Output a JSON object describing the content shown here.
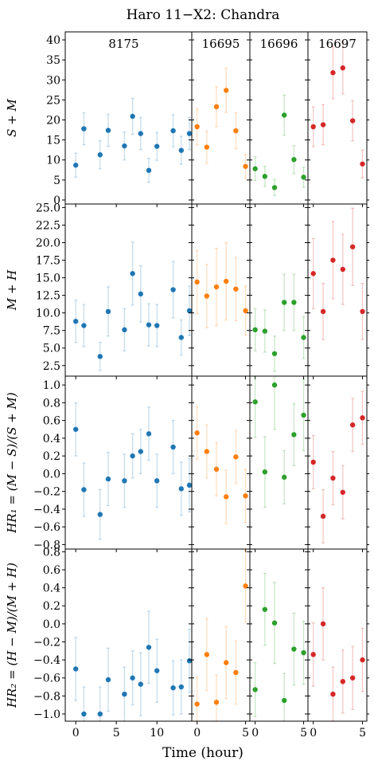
{
  "chart_data": {
    "type": "scatter",
    "title": "Haro 11−X2: Chandra",
    "xlabel": "Time (hour)",
    "colors": [
      "#1f77b4",
      "#ff7f0e",
      "#2ca02c",
      "#d62728"
    ],
    "obsids": [
      {
        "label": "8175",
        "xlim": [
          -1,
          14
        ],
        "ticks": [
          0,
          5,
          10
        ]
      },
      {
        "label": "16695",
        "xlim": [
          -0.3,
          5.2
        ],
        "ticks": [
          0,
          5
        ]
      },
      {
        "label": "16696",
        "xlim": [
          -0.3,
          5.2
        ],
        "ticks": [
          0,
          5
        ]
      },
      {
        "label": "16697",
        "xlim": [
          -0.3,
          5.2
        ],
        "ticks": [
          0,
          5
        ]
      }
    ],
    "rows": [
      {
        "ylabel": "S + M",
        "ylim": [
          -1,
          42
        ],
        "ticks": [
          0,
          5,
          10,
          15,
          20,
          25,
          30,
          35,
          40
        ],
        "tick_labels": [
          "0",
          "5",
          "10",
          "15",
          "20",
          "25",
          "30",
          "35",
          "40"
        ],
        "series": [
          {
            "x": [
              0,
              1,
              3,
              4,
              6,
              7,
              8,
              9,
              10,
              12,
              13,
              14
            ],
            "y": [
              8.7,
              17.8,
              11.3,
              17.4,
              13.5,
              20.9,
              16.6,
              7.4,
              13.4,
              17.3,
              12.4,
              16.6
            ],
            "err": [
              3,
              4,
              3.5,
              4,
              3.5,
              4.5,
              4,
              3,
              3.5,
              4,
              3.5,
              4
            ]
          },
          {
            "x": [
              0,
              1,
              2,
              3,
              4,
              5
            ],
            "y": [
              18.3,
              13.2,
              23.3,
              27.4,
              17.3,
              8.4
            ],
            "err": [
              4.5,
              4,
              5,
              5.5,
              4.5,
              3
            ]
          },
          {
            "x": [
              0,
              1,
              2,
              3,
              4,
              5
            ],
            "y": [
              7.8,
              5.9,
              3.1,
              21.2,
              10.1,
              5.7
            ],
            "err": [
              3,
              2.5,
              2,
              5,
              3.5,
              2.5
            ]
          },
          {
            "x": [
              0,
              1,
              2,
              3,
              4,
              5
            ],
            "y": [
              18.3,
              18.8,
              31.8,
              33.0,
              19.8,
              9.0
            ],
            "err": [
              5,
              5,
              6.5,
              6.5,
              5,
              3.5
            ]
          }
        ]
      },
      {
        "ylabel": "M + H",
        "ylim": [
          1.0,
          25.5
        ],
        "ticks": [
          2.5,
          5.0,
          7.5,
          10.0,
          12.5,
          15.0,
          17.5,
          20.0,
          22.5,
          25.0
        ],
        "tick_labels": [
          "2.5",
          "5.0",
          "7.5",
          "10.0",
          "12.5",
          "15.0",
          "17.5",
          "20.0",
          "22.5",
          "25.0"
        ],
        "series": [
          {
            "x": [
              0,
              1,
              3,
              4,
              6,
              7,
              8,
              9,
              10,
              12,
              13,
              14
            ],
            "y": [
              8.8,
              8.2,
              3.8,
              10.2,
              7.6,
              15.6,
              12.7,
              8.3,
              8.2,
              13.3,
              6.5,
              10.3
            ],
            "err": [
              3,
              3,
              2,
              3.5,
              3,
              4.5,
              4,
              3,
              3,
              4,
              2.5,
              3.5
            ]
          },
          {
            "x": [
              0,
              1,
              2,
              3,
              4,
              5
            ],
            "y": [
              14.4,
              12.4,
              13.7,
              14.5,
              13.4,
              10.3
            ],
            "err": [
              4.5,
              4.5,
              5.5,
              5.5,
              4.5,
              3.5
            ]
          },
          {
            "x": [
              0,
              1,
              2,
              3,
              4,
              5
            ],
            "y": [
              7.6,
              7.4,
              4.2,
              11.5,
              11.5,
              6.5
            ],
            "err": [
              3,
              3,
              2.5,
              4,
              4,
              3
            ]
          },
          {
            "x": [
              0,
              1,
              2,
              3,
              4,
              5
            ],
            "y": [
              15.6,
              10.2,
              17.5,
              16.2,
              19.4,
              10.2
            ],
            "err": [
              5,
              4,
              5.5,
              5,
              5.5,
              4
            ]
          }
        ]
      },
      {
        "ylabel": "HR₁ = (M − S)/(S + M)",
        "ylim": [
          -0.85,
          1.1
        ],
        "ticks": [
          -0.8,
          -0.6,
          -0.4,
          -0.2,
          0.0,
          0.2,
          0.4,
          0.6,
          0.8,
          1.0
        ],
        "tick_labels": [
          "−0.8",
          "−0.6",
          "−0.4",
          "−0.2",
          "0.0",
          "0.2",
          "0.4",
          "0.6",
          "0.8",
          "1.0"
        ],
        "series": [
          {
            "x": [
              0,
              1,
              3,
              4,
              6,
              7,
              8,
              9,
              10,
              12,
              13,
              14
            ],
            "y": [
              0.5,
              -0.18,
              -0.46,
              -0.06,
              -0.08,
              0.2,
              0.25,
              0.45,
              -0.08,
              0.3,
              -0.17,
              -0.13
            ],
            "err": [
              0.3,
              0.3,
              0.28,
              0.3,
              0.3,
              0.25,
              0.25,
              0.3,
              0.3,
              0.3,
              0.3,
              0.3
            ]
          },
          {
            "x": [
              0,
              1,
              2,
              3,
              4,
              5
            ],
            "y": [
              0.46,
              0.25,
              0.05,
              -0.26,
              0.19,
              -0.25
            ],
            "err": [
              0.3,
              0.3,
              0.3,
              0.3,
              0.3,
              0.3
            ]
          },
          {
            "x": [
              0,
              1,
              2,
              3,
              4,
              5
            ],
            "y": [
              0.81,
              0.02,
              1.0,
              -0.04,
              0.44,
              0.66
            ],
            "err": [
              0.4,
              0.4,
              0.5,
              0.3,
              0.35,
              0.4
            ]
          },
          {
            "x": [
              0,
              1,
              2,
              3,
              4,
              5
            ],
            "y": [
              0.13,
              -0.48,
              -0.05,
              -0.21,
              0.55,
              0.63
            ],
            "err": [
              0.3,
              0.3,
              0.3,
              0.3,
              0.3,
              0.3
            ]
          }
        ]
      },
      {
        "ylabel": "HR₂ = (H − M)/(M + H)",
        "ylim": [
          -1.08,
          0.83
        ],
        "ticks": [
          -1.0,
          -0.8,
          -0.6,
          -0.4,
          -0.2,
          0.0,
          0.2,
          0.4,
          0.6,
          0.8
        ],
        "tick_labels": [
          "−1.0",
          "−0.8",
          "−0.6",
          "−0.4",
          "−0.2",
          "0.0",
          "0.2",
          "0.4",
          "0.6",
          "0.8"
        ],
        "series": [
          {
            "x": [
              0,
              1,
              3,
              4,
              6,
              7,
              8,
              9,
              10,
              12,
              13,
              14
            ],
            "y": [
              -0.5,
              -1.0,
              -1.0,
              -0.62,
              -0.78,
              -0.6,
              -0.67,
              -0.26,
              -0.52,
              -0.71,
              -0.7,
              -0.41
            ],
            "err": [
              0.35,
              0.3,
              0.3,
              0.35,
              0.3,
              0.3,
              0.35,
              0.4,
              0.35,
              0.3,
              0.3,
              0.35
            ]
          },
          {
            "x": [
              0,
              1,
              2,
              3,
              4,
              5
            ],
            "y": [
              -0.89,
              -0.34,
              -0.87,
              -0.43,
              -0.54,
              0.42
            ],
            "err": [
              0.3,
              0.4,
              0.3,
              0.4,
              0.35,
              0.4
            ]
          },
          {
            "x": [
              0,
              1,
              2,
              3,
              4,
              5
            ],
            "y": [
              -0.73,
              0.16,
              0.01,
              -0.85,
              -0.28,
              -0.32
            ],
            "err": [
              0.3,
              0.4,
              0.45,
              0.3,
              0.4,
              0.35
            ]
          },
          {
            "x": [
              0,
              1,
              2,
              3,
              4,
              5
            ],
            "y": [
              -0.34,
              0.0,
              -0.78,
              -0.64,
              -0.6,
              -0.4
            ],
            "err": [
              0.35,
              0.4,
              0.3,
              0.35,
              0.35,
              0.35
            ]
          }
        ]
      }
    ]
  }
}
